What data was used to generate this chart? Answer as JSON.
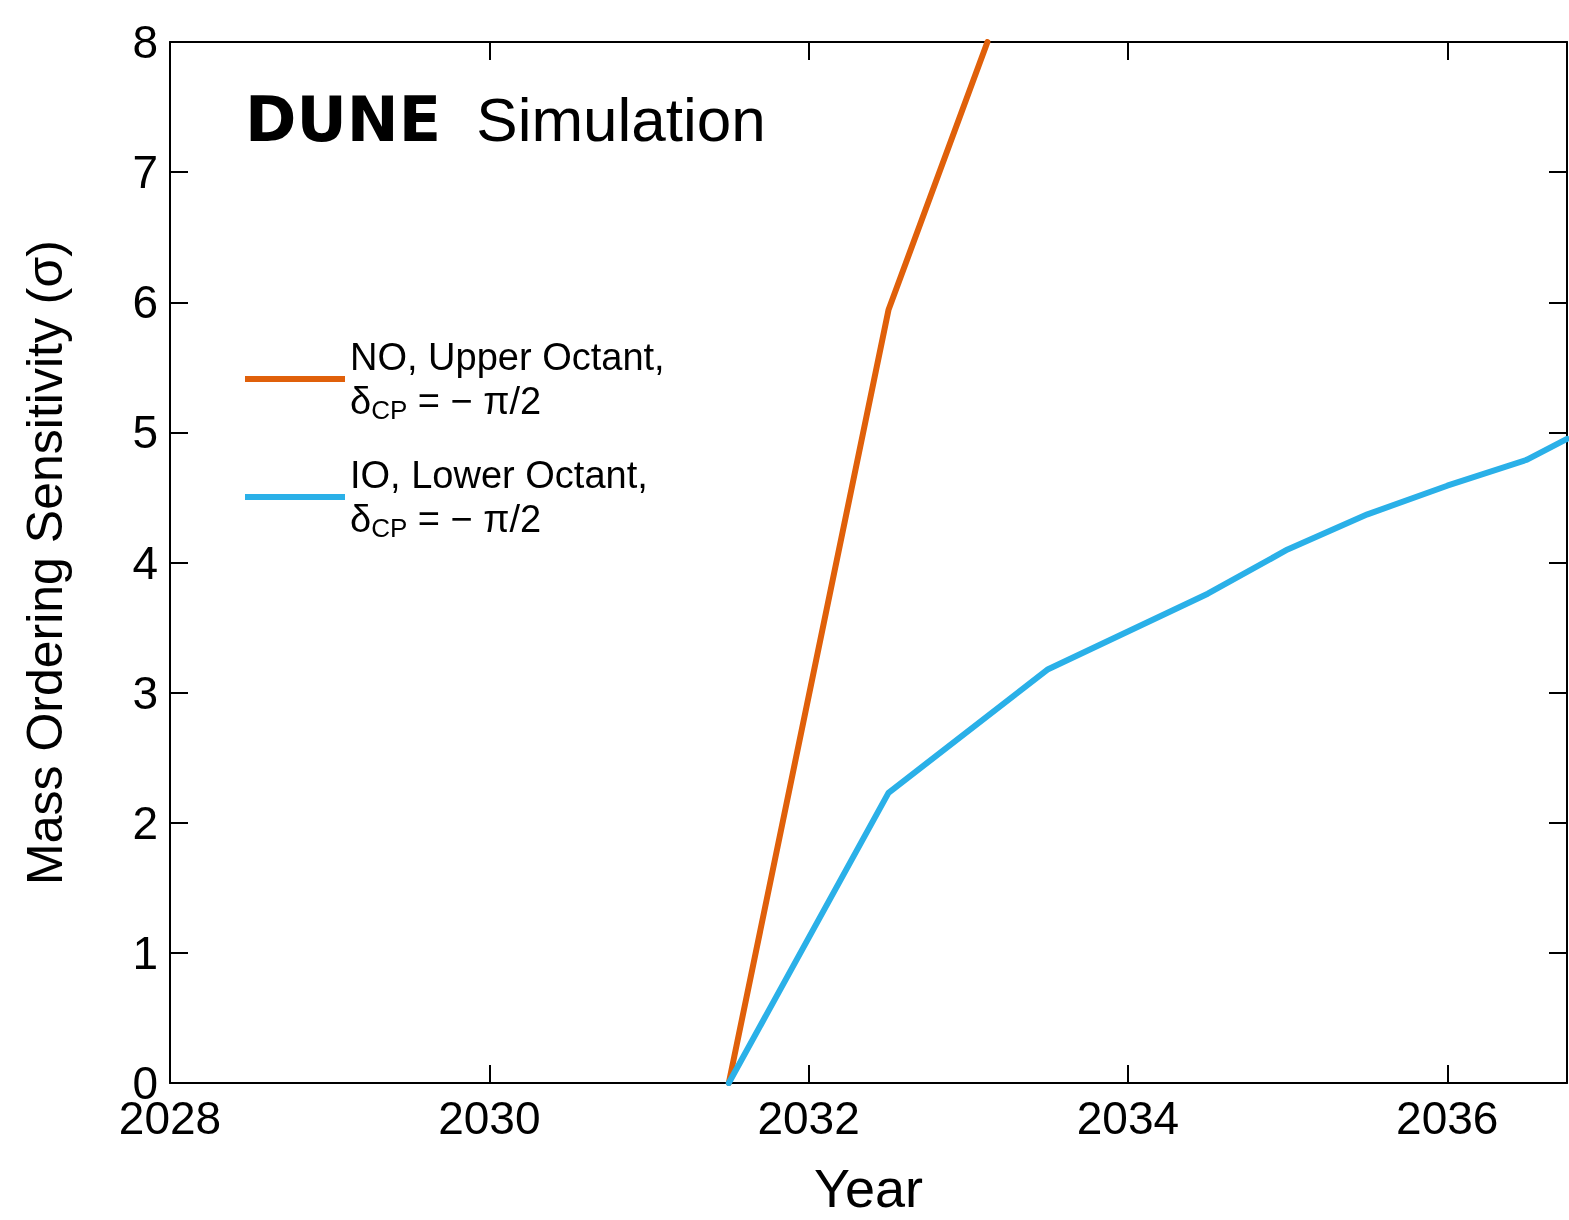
{
  "chart_data": {
    "type": "line",
    "xlabel": "Year",
    "ylabel": "Mass Ordering Sensitivity (σ)",
    "annotations": [
      "DUNE Simulation"
    ],
    "xlim": [
      2028,
      2036.75
    ],
    "xticks": [
      2028,
      2030,
      2032,
      2034,
      2036
    ],
    "ylim": [
      0,
      8
    ],
    "yticks": [
      0,
      1,
      2,
      3,
      4,
      5,
      6,
      7,
      8
    ],
    "grid": false,
    "legend": "left",
    "marker": "none",
    "line_style": "solid",
    "series": [
      {
        "name": "NO, Upper Octant, δ$_{CP}$ = − π/2",
        "color": "#e0600a",
        "x": [
          2031.5,
          2032.5,
          2033.12
        ],
        "values": [
          0,
          5.94,
          8
        ]
      },
      {
        "name": "IO, Lower Octant, δ$_{CP}$ = − π/2",
        "color": "#2ab0e8",
        "x": [
          2031.5,
          2032.5,
          2033.5,
          2034.5,
          2035,
          2035.5,
          2036,
          2036.5,
          2036.75
        ],
        "values": [
          0,
          2.23,
          3.18,
          3.76,
          4.1,
          4.37,
          4.59,
          4.79,
          4.95
        ]
      }
    ]
  }
}
